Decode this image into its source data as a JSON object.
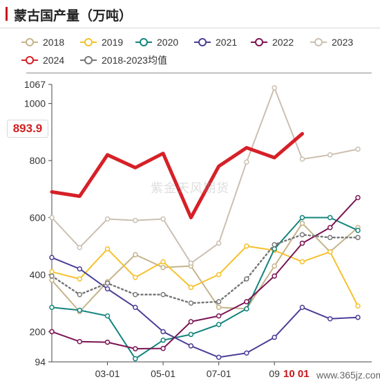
{
  "title": "蒙古国产量（万吨）",
  "highlight_value": "893.9",
  "watermark": "紫金天风期货",
  "corner_mark": "10 01",
  "site_mark": "www.365jz.com",
  "chart_data": {
    "type": "line",
    "title": "蒙古国产量（万吨）",
    "xlabel": "",
    "ylabel": "",
    "x": [
      "01",
      "02",
      "03",
      "04",
      "05",
      "06",
      "07",
      "08",
      "09",
      "10",
      "11",
      "12"
    ],
    "x_tick_labels": [
      "03-01",
      "05-01",
      "07-01",
      "09"
    ],
    "ylim": [
      94,
      1067
    ],
    "y_ticks": [
      94,
      200,
      400,
      600,
      800,
      1000,
      1067
    ],
    "grid": false,
    "legend_position": "top",
    "series": [
      {
        "name": "2018",
        "color": "#c5b38a",
        "style": "solid",
        "width": 2,
        "values": [
          380,
          270,
          375,
          470,
          425,
          430,
          285,
          280,
          430,
          580,
          480,
          565
        ]
      },
      {
        "name": "2019",
        "color": "#f5c12c",
        "style": "solid",
        "width": 2,
        "values": [
          410,
          385,
          490,
          390,
          445,
          355,
          400,
          500,
          485,
          445,
          480,
          290
        ]
      },
      {
        "name": "2020",
        "color": "#12847c",
        "style": "solid",
        "width": 2,
        "values": [
          285,
          275,
          255,
          105,
          170,
          190,
          225,
          280,
          490,
          600,
          600,
          555
        ]
      },
      {
        "name": "2021",
        "color": "#4a3f97",
        "style": "solid",
        "width": 2,
        "values": [
          460,
          420,
          350,
          285,
          200,
          150,
          110,
          125,
          180,
          285,
          245,
          250
        ]
      },
      {
        "name": "2022",
        "color": "#7b1454",
        "style": "solid",
        "width": 2,
        "values": [
          200,
          165,
          163,
          140,
          141,
          235,
          255,
          305,
          395,
          510,
          565,
          670
        ]
      },
      {
        "name": "2023",
        "color": "#cbbfb0",
        "style": "solid",
        "width": 2,
        "values": [
          600,
          495,
          595,
          590,
          595,
          440,
          510,
          795,
          1055,
          805,
          820,
          840
        ]
      },
      {
        "name": "2024",
        "color": "#d62027",
        "style": "solid",
        "width": 5,
        "values": [
          690,
          675,
          820,
          775,
          825,
          600,
          780,
          845,
          810,
          893.9,
          null,
          null
        ]
      },
      {
        "name": "2018-2023均值",
        "color": "#777777",
        "style": "dotted",
        "width": 2.5,
        "values": [
          395,
          330,
          370,
          330,
          330,
          300,
          305,
          385,
          505,
          540,
          530,
          530
        ]
      }
    ]
  }
}
